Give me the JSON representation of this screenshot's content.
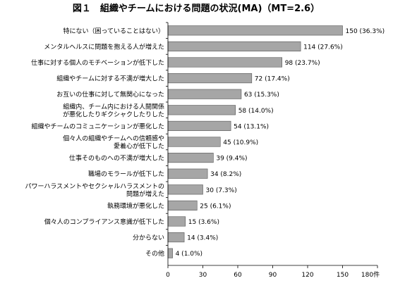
{
  "chart_data": {
    "type": "bar",
    "orientation": "horizontal",
    "title": "図１　組織やチームにおける問題の状況(MA)（MT=2.6）",
    "xlabel": "",
    "ylabel": "",
    "xlim": [
      0,
      180
    ],
    "x_ticks": [
      "0",
      "30",
      "60",
      "90",
      "120",
      "150",
      "180件"
    ],
    "grid": false,
    "legend": "none",
    "bar_color": "#a6a6a6",
    "categories": [
      [
        "特にない（困っていることはない）"
      ],
      [
        "メンタルヘルスに問題を抱える人が増えた"
      ],
      [
        "仕事に対する個人のモチベーションが低下した"
      ],
      [
        "組織やチームに対する不満が増大した"
      ],
      [
        "お互いの仕事に対して無関心になった"
      ],
      [
        "組織内、チーム内における人間関係",
        "が悪化したりギクシャクしたりした"
      ],
      [
        "組織やチームのコミュニケーションが悪化した"
      ],
      [
        "個々人の組織やチームへの信頼感や",
        "愛着心が低下した"
      ],
      [
        "仕事そのものへの不満が増大した"
      ],
      [
        "職場のモラールが低下した"
      ],
      [
        "パワーハラスメントやセクシャルハラスメントの",
        "問題が増えた"
      ],
      [
        "執務環境が悪化した"
      ],
      [
        "個々人のコンプライアンス意識が低下した"
      ],
      [
        "分からない"
      ],
      [
        "その他"
      ]
    ],
    "values": [
      150,
      114,
      98,
      72,
      63,
      58,
      54,
      45,
      39,
      34,
      30,
      25,
      15,
      14,
      4
    ],
    "data_labels": [
      "150 (36.3%)",
      "114 (27.6%)",
      "98 (23.7%)",
      "72 (17.4%)",
      "63 (15.3%)",
      "58 (14.0%)",
      "54 (13.1%)",
      "45 (10.9%)",
      "39 (9.4%)",
      "34 (8.2%)",
      "30 (7.3%)",
      "25 (6.1%)",
      "15 (3.6%)",
      "14 (3.4%)",
      "4 (1.0%)"
    ]
  }
}
